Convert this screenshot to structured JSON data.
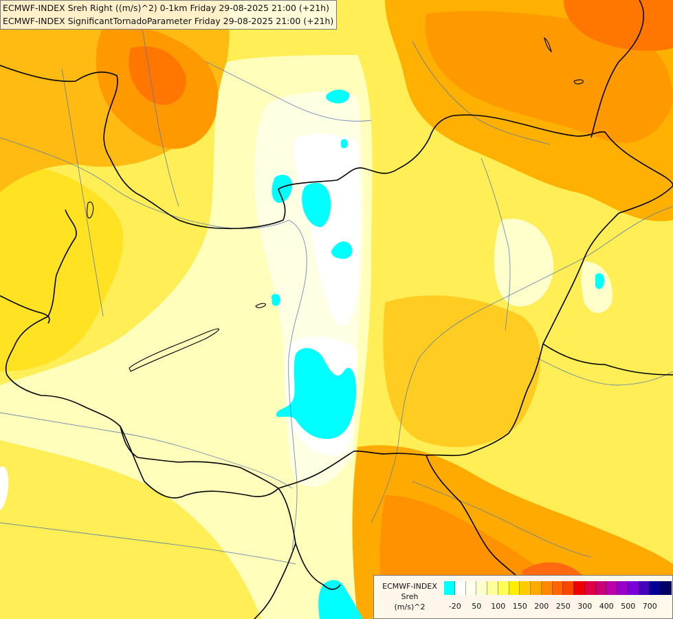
{
  "title_lines": [
    "ECMWF-INDEX Sreh Right ((m/s)^2) 0-1km Friday 29-08-2025 21:00 (+21h)",
    "ECMWF-INDEX SignificantTornadoParameter Friday 29-08-2025 21:00 (+21h)"
  ],
  "legend": {
    "title_lines": [
      "ECMWF-INDEX",
      "Sreh",
      "(m/s)^2"
    ],
    "colors": [
      "#00ffff",
      "#ffffff",
      "#ffffee",
      "#ffffcc",
      "#ffff99",
      "#ffff55",
      "#ffee00",
      "#ffcc00",
      "#ffaa00",
      "#ff8800",
      "#ff6600",
      "#ff4400",
      "#ee0000",
      "#dd0044",
      "#cc0077",
      "#bb00aa",
      "#9900cc",
      "#7700dd",
      "#4400bb",
      "#000099",
      "#000066"
    ],
    "tick_labels": [
      "-20",
      "50",
      "100",
      "150",
      "200",
      "250",
      "300",
      "400",
      "500",
      "700"
    ]
  },
  "colors": {
    "background": "#ffee55",
    "pale": "#ffffbb",
    "very_pale": "#ffffe4",
    "white": "#ffffff",
    "cyan": "#00ffff",
    "light_orange": "#ffcc22",
    "orange": "#ffaa00",
    "dark_orange": "#ff7700",
    "red_orange": "#ff5a00",
    "border": "#000000",
    "river": "#5577aa"
  }
}
